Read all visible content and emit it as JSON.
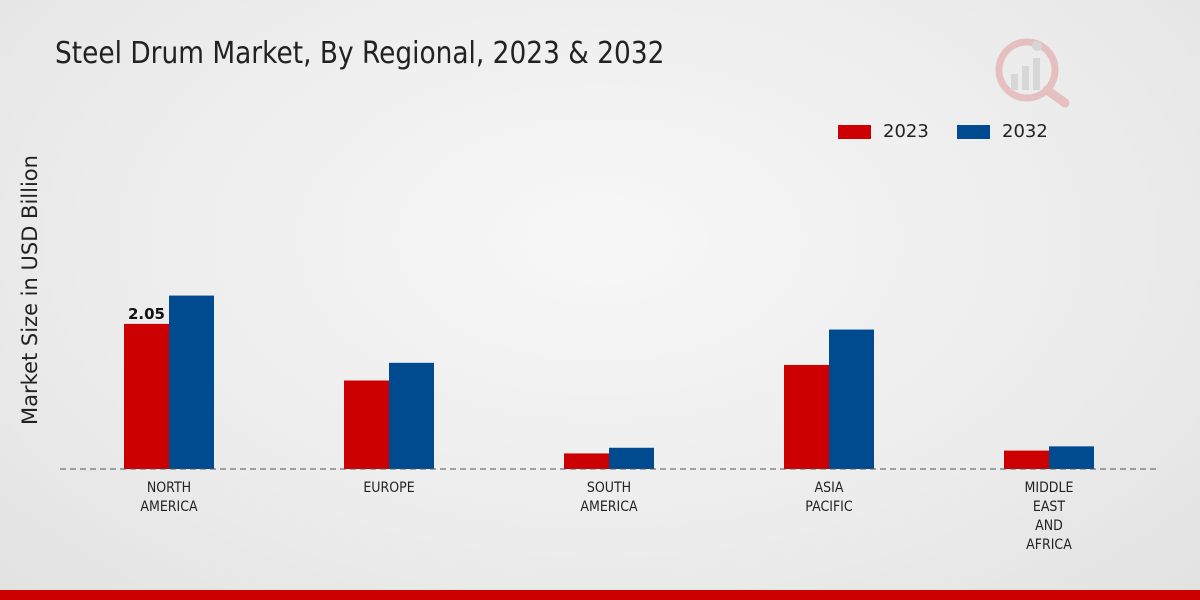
{
  "chart_data": {
    "type": "bar",
    "title": "Steel Drum Market, By Regional, 2023 & 2032",
    "ylabel": "Market Size in USD Billion",
    "xlabel": "",
    "categories": [
      [
        "NORTH",
        "AMERICA"
      ],
      [
        "EUROPE"
      ],
      [
        "SOUTH",
        "AMERICA"
      ],
      [
        "ASIA",
        "PACIFIC"
      ],
      [
        "MIDDLE",
        "EAST",
        "AND",
        "AFRICA"
      ]
    ],
    "series": [
      {
        "name": "2023",
        "color": "#cc0000",
        "values": [
          2.05,
          1.25,
          0.22,
          1.47,
          0.26
        ]
      },
      {
        "name": "2032",
        "color": "#004a8f",
        "values": [
          2.45,
          1.5,
          0.3,
          1.97,
          0.32
        ]
      }
    ],
    "data_labels": [
      {
        "series": 0,
        "index": 0,
        "text": "2.05"
      }
    ],
    "ylim": [
      0,
      5.1
    ],
    "grid": false,
    "legend_position": "top-right"
  }
}
